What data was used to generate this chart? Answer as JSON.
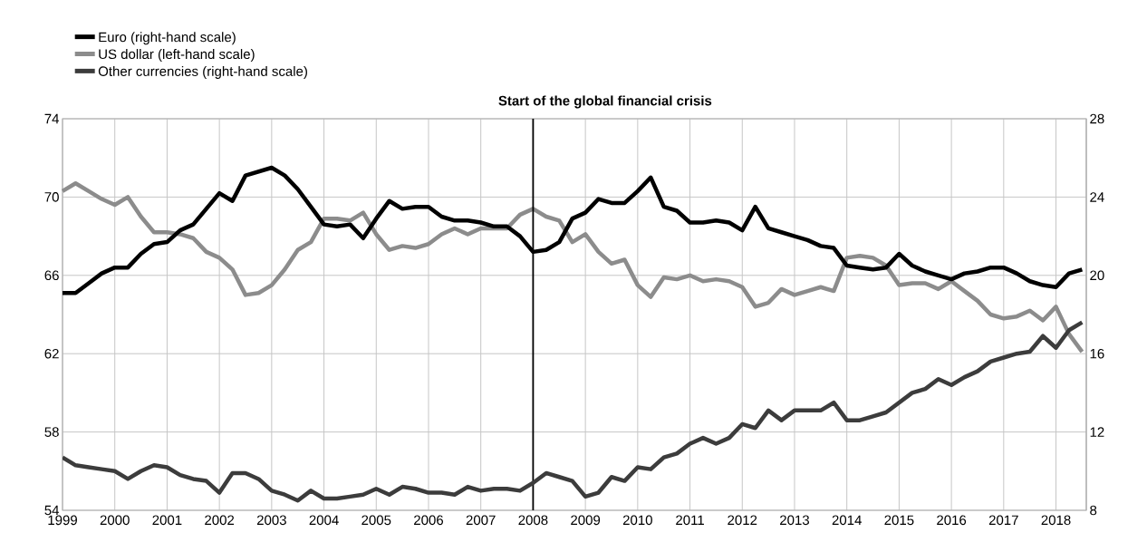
{
  "chart_data": {
    "type": "line",
    "x": [
      1999,
      1999.25,
      1999.5,
      1999.75,
      2000,
      2000.25,
      2000.5,
      2000.75,
      2001,
      2001.25,
      2001.5,
      2001.75,
      2002,
      2002.25,
      2002.5,
      2002.75,
      2003,
      2003.25,
      2003.5,
      2003.75,
      2004,
      2004.25,
      2004.5,
      2004.75,
      2005,
      2005.25,
      2005.5,
      2005.75,
      2006,
      2006.25,
      2006.5,
      2006.75,
      2007,
      2007.25,
      2007.5,
      2007.75,
      2008,
      2008.25,
      2008.5,
      2008.75,
      2009,
      2009.25,
      2009.5,
      2009.75,
      2010,
      2010.25,
      2010.5,
      2010.75,
      2011,
      2011.25,
      2011.5,
      2011.75,
      2012,
      2012.25,
      2012.5,
      2012.75,
      2013,
      2013.25,
      2013.5,
      2013.75,
      2014,
      2014.25,
      2014.5,
      2014.75,
      2015,
      2015.25,
      2015.5,
      2015.75,
      2016,
      2016.25,
      2016.5,
      2016.75,
      2017,
      2017.25,
      2017.5,
      2017.75,
      2018,
      2018.25,
      2018.5
    ],
    "series": [
      {
        "name": "Euro (right-hand scale)",
        "color": "#000000",
        "axis": "y2",
        "values": [
          19.1,
          19.1,
          19.6,
          20.1,
          20.4,
          20.4,
          21.1,
          21.6,
          21.7,
          22.3,
          22.6,
          23.4,
          24.2,
          23.8,
          25.1,
          25.3,
          25.5,
          25.1,
          24.4,
          23.5,
          22.6,
          22.5,
          22.6,
          21.9,
          22.9,
          23.8,
          23.4,
          23.5,
          23.5,
          23.0,
          22.8,
          22.8,
          22.7,
          22.5,
          22.5,
          22.0,
          21.2,
          21.3,
          21.7,
          22.9,
          23.2,
          23.9,
          23.7,
          23.7,
          24.3,
          25.0,
          23.5,
          23.3,
          22.7,
          22.7,
          22.8,
          22.7,
          22.3,
          23.5,
          22.4,
          22.2,
          22.0,
          21.8,
          21.5,
          21.4,
          20.5,
          20.4,
          20.3,
          20.4,
          21.1,
          20.5,
          20.2,
          20.0,
          19.8,
          20.1,
          20.2,
          20.4,
          20.4,
          20.1,
          19.7,
          19.5,
          19.4,
          20.1,
          20.3
        ]
      },
      {
        "name": "US dollar (left-hand scale)",
        "color": "#8c8c8c",
        "values": [
          70.3,
          70.7,
          70.3,
          69.9,
          69.6,
          70.0,
          69.0,
          68.2,
          68.2,
          68.1,
          67.9,
          67.2,
          66.9,
          66.3,
          65.0,
          65.1,
          65.5,
          66.3,
          67.3,
          67.7,
          68.9,
          68.9,
          68.8,
          69.2,
          68.1,
          67.3,
          67.5,
          67.4,
          67.6,
          68.1,
          68.4,
          68.1,
          68.4,
          68.4,
          68.4,
          69.1,
          69.4,
          69.0,
          68.8,
          67.7,
          68.1,
          67.2,
          66.6,
          66.8,
          65.5,
          64.9,
          65.9,
          65.8,
          66.0,
          65.7,
          65.8,
          65.7,
          65.4,
          64.4,
          64.6,
          65.3,
          65.0,
          65.2,
          65.4,
          65.2,
          66.9,
          67.0,
          66.9,
          66.5,
          65.5,
          65.6,
          65.6,
          65.3,
          65.7,
          65.2,
          64.7,
          64.0,
          63.8,
          63.9,
          64.2,
          63.7,
          64.4,
          63.0,
          62.1
        ]
      },
      {
        "name": "Other currencies (right-hand scale)",
        "color": "#3c3c3c",
        "axis": "y2",
        "values": [
          10.7,
          10.3,
          10.2,
          10.1,
          10.0,
          9.6,
          10.0,
          10.3,
          10.2,
          9.8,
          9.6,
          9.5,
          8.9,
          9.9,
          9.9,
          9.6,
          9.0,
          8.8,
          8.5,
          9.0,
          8.6,
          8.6,
          8.7,
          8.8,
          9.1,
          8.8,
          9.2,
          9.1,
          8.9,
          8.9,
          8.8,
          9.2,
          9.0,
          9.1,
          9.1,
          9.0,
          9.4,
          9.9,
          9.7,
          9.5,
          8.7,
          8.9,
          9.7,
          9.5,
          10.2,
          10.1,
          10.7,
          10.9,
          11.4,
          11.7,
          11.4,
          11.7,
          12.4,
          12.2,
          13.1,
          12.6,
          13.1,
          13.1,
          13.1,
          13.5,
          12.6,
          12.6,
          12.8,
          13.0,
          13.5,
          14.0,
          14.2,
          14.7,
          14.4,
          14.8,
          15.1,
          15.6,
          15.8,
          16.0,
          16.1,
          16.9,
          16.3,
          17.2,
          17.6
        ]
      }
    ],
    "xlim": [
      1999,
      2018.58
    ],
    "xticks": [
      1999,
      2000,
      2001,
      2002,
      2003,
      2004,
      2005,
      2006,
      2007,
      2008,
      2009,
      2010,
      2011,
      2012,
      2013,
      2014,
      2015,
      2016,
      2017,
      2018
    ],
    "ylim": [
      54,
      74
    ],
    "yticks": [
      54,
      58,
      62,
      66,
      70,
      74
    ],
    "y2lim": [
      8,
      28
    ],
    "y2ticks": [
      8,
      12,
      16,
      20,
      24,
      28
    ],
    "ref_lines": [
      {
        "axis": "x",
        "value": 2008,
        "label": "Start of the global financial crisis",
        "color": "#000000"
      }
    ],
    "grid": true,
    "legend": "top left"
  }
}
